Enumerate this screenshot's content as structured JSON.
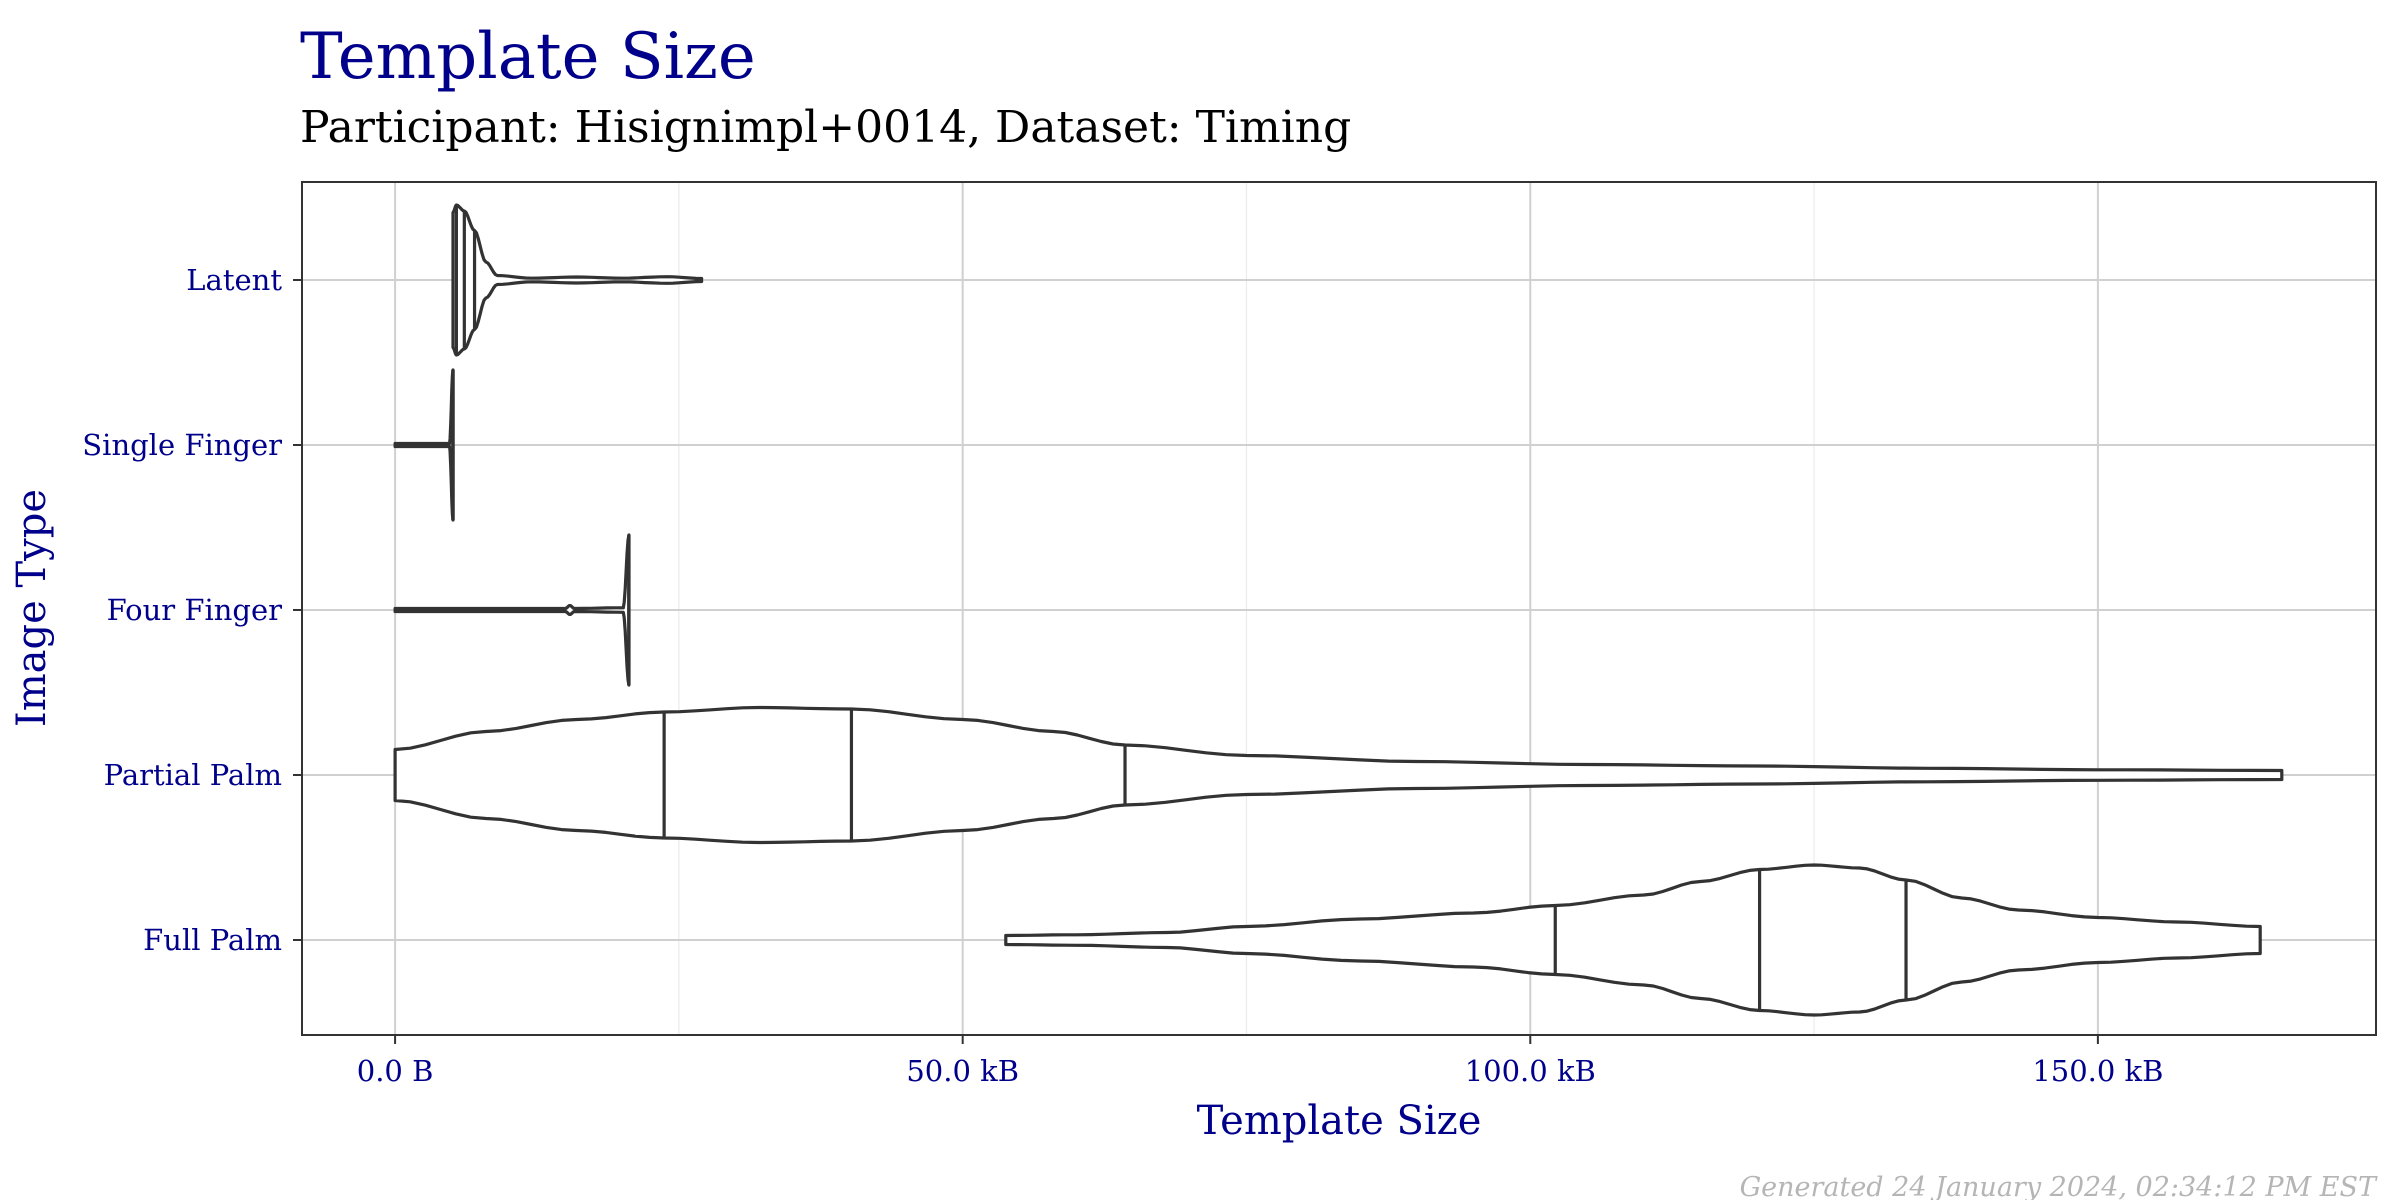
{
  "chart_data": {
    "type": "violin",
    "title": "Template Size",
    "subtitle": "Participant: Hisignimpl+0014, Dataset: Timing",
    "xlabel": "Template Size",
    "ylabel": "Image Type",
    "xlim": [
      -8.2,
      174.5
    ],
    "x_unit": "kB",
    "x_ticks": [
      {
        "value": 0,
        "label": "0.0 B"
      },
      {
        "value": 50,
        "label": "50.0 kB"
      },
      {
        "value": 100,
        "label": "100.0 kB"
      },
      {
        "value": 150,
        "label": "150.0 kB"
      }
    ],
    "x_minor_ticks": [
      25,
      75,
      125
    ],
    "grid": true,
    "legend": "none",
    "draw_quantiles": [
      0.25,
      0.5,
      0.75
    ],
    "categories": [
      "Full Palm",
      "Partial Palm",
      "Four Finger",
      "Single Finger",
      "Latent"
    ],
    "series": [
      {
        "category": "Full Palm",
        "min": 53.8,
        "max": 164.3,
        "quartiles": [
          102.2,
          120.2,
          133.1
        ],
        "density": [
          [
            53.8,
            0.03
          ],
          [
            60,
            0.035
          ],
          [
            68,
            0.05
          ],
          [
            75,
            0.09
          ],
          [
            85,
            0.14
          ],
          [
            95,
            0.18
          ],
          [
            102.2,
            0.23
          ],
          [
            110,
            0.3
          ],
          [
            115,
            0.39
          ],
          [
            120.2,
            0.47
          ],
          [
            125,
            0.5
          ],
          [
            129,
            0.48
          ],
          [
            133.1,
            0.4
          ],
          [
            138,
            0.28
          ],
          [
            143,
            0.2
          ],
          [
            150,
            0.15
          ],
          [
            157,
            0.12
          ],
          [
            164.3,
            0.09
          ]
        ]
      },
      {
        "category": "Partial Palm",
        "min": 0,
        "max": 166.2,
        "quartiles": [
          23.7,
          40.2,
          64.3
        ],
        "density": [
          [
            0,
            0.17
          ],
          [
            8,
            0.29
          ],
          [
            16,
            0.37
          ],
          [
            23.7,
            0.42
          ],
          [
            32,
            0.45
          ],
          [
            40.2,
            0.44
          ],
          [
            50,
            0.37
          ],
          [
            58,
            0.29
          ],
          [
            64.3,
            0.2
          ],
          [
            75,
            0.13
          ],
          [
            90,
            0.09
          ],
          [
            105,
            0.07
          ],
          [
            120,
            0.06
          ],
          [
            135,
            0.045
          ],
          [
            150,
            0.035
          ],
          [
            166.2,
            0.03
          ]
        ]
      },
      {
        "category": "Four Finger",
        "min": 0,
        "max": 20.6,
        "quartiles": [
          20.6,
          20.6,
          20.6
        ],
        "density": [
          [
            0,
            0.01
          ],
          [
            15,
            0.01
          ],
          [
            15.4,
            0.03
          ],
          [
            15.8,
            0.01
          ],
          [
            20.1,
            0.015
          ],
          [
            20.6,
            0.5
          ]
        ]
      },
      {
        "category": "Single Finger",
        "min": 0,
        "max": 5.1,
        "quartiles": [
          5.1,
          5.1,
          5.1
        ],
        "density": [
          [
            0,
            0.01
          ],
          [
            4.8,
            0.01
          ],
          [
            5.1,
            0.5
          ]
        ]
      },
      {
        "category": "Latent",
        "min": 5.1,
        "max": 27,
        "quartiles": [
          5.4,
          6.1,
          7.0
        ],
        "density": [
          [
            5.1,
            0.45
          ],
          [
            5.4,
            0.5
          ],
          [
            6.1,
            0.46
          ],
          [
            7.0,
            0.33
          ],
          [
            8,
            0.12
          ],
          [
            9,
            0.03
          ],
          [
            12,
            0.012
          ],
          [
            16,
            0.02
          ],
          [
            20,
            0.012
          ],
          [
            24,
            0.022
          ],
          [
            27,
            0.01
          ]
        ]
      }
    ]
  },
  "footer": "Generated 24 January 2024, 02:34:12 PM EST"
}
